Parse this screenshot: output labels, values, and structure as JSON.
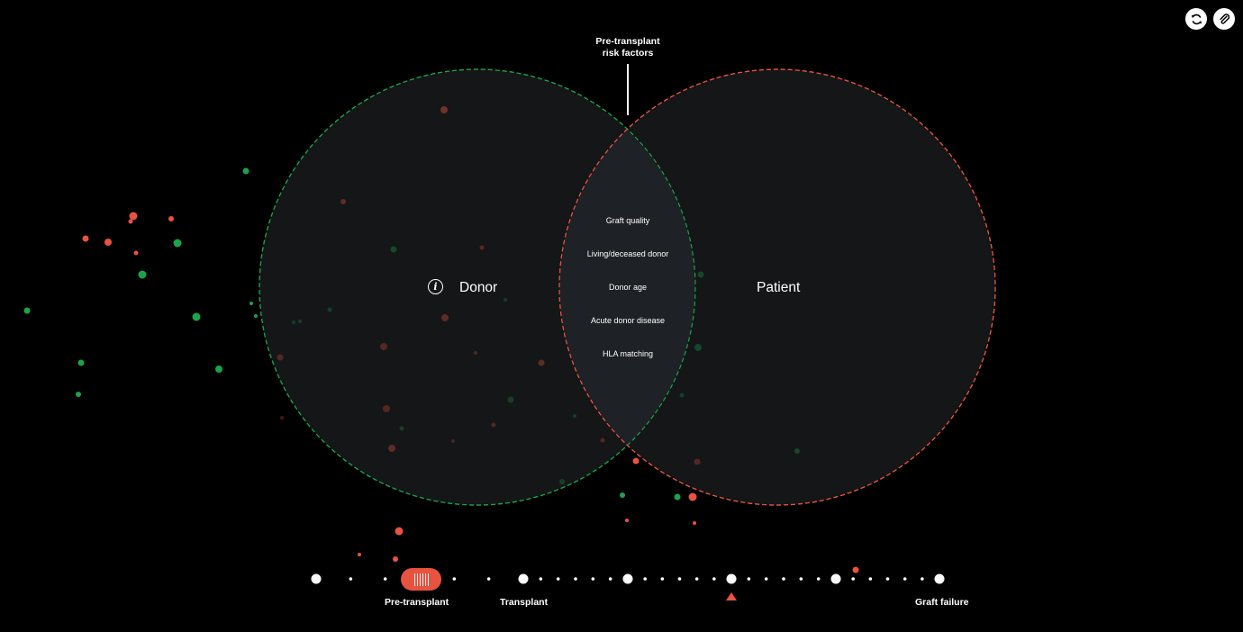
{
  "header": {
    "refresh_icon": "refresh-icon",
    "link_icon": "link-icon"
  },
  "annotation": {
    "pre_transplant_risk": "Pre-transplant\nrisk factors"
  },
  "venn": {
    "donor_label": "Donor",
    "patient_label": "Patient",
    "info_icon_glyph": "i",
    "donor_color": "#1aa34a",
    "patient_color": "#e8533f",
    "fill_color": "#141618",
    "overlap_color": "#1e2125",
    "shared_factors": [
      "Graft quality",
      "Living/deceased donor",
      "Donor age",
      "Acute donor disease",
      "HLA matching"
    ]
  },
  "timeline": {
    "labels": [
      "Pre-transplant",
      "Transplant",
      "Graft failure"
    ],
    "accent_color": "#e8533f"
  }
}
